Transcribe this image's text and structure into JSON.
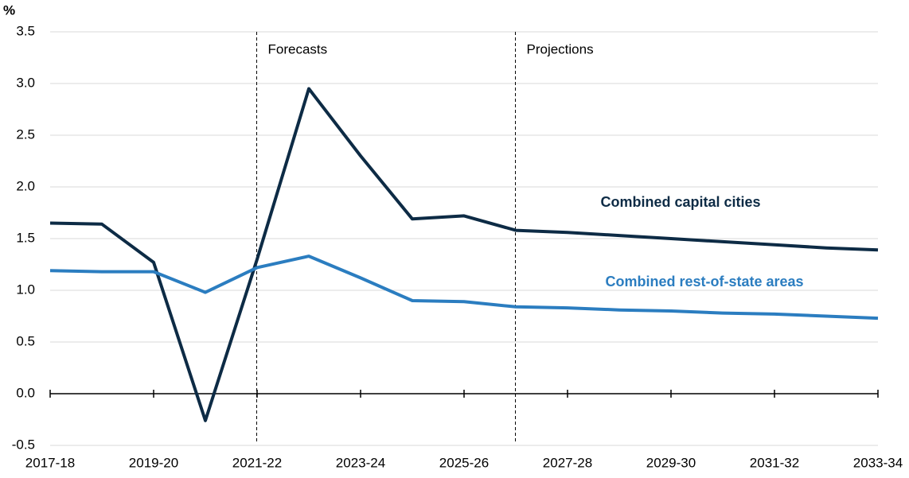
{
  "chart_data": {
    "type": "line",
    "y_label": "%",
    "categories": [
      "2017-18",
      null,
      "2019-20",
      null,
      "2021-22",
      null,
      "2023-24",
      null,
      "2025-26",
      null,
      "2027-28",
      null,
      "2029-30",
      null,
      "2031-32",
      null,
      "2033-34"
    ],
    "series": [
      {
        "name": "Combined capital cities",
        "color": "#0d2b45",
        "values": [
          1.65,
          1.64,
          1.27,
          -0.26,
          1.3,
          2.95,
          2.3,
          1.69,
          1.72,
          1.58,
          1.56,
          1.53,
          1.5,
          1.47,
          1.44,
          1.41,
          1.39
        ]
      },
      {
        "name": "Combined rest-of-state areas",
        "color": "#2b7dc0",
        "values": [
          1.19,
          1.18,
          1.18,
          0.98,
          1.22,
          1.33,
          1.12,
          0.9,
          0.89,
          0.84,
          0.83,
          0.81,
          0.8,
          0.78,
          0.77,
          0.75,
          0.73
        ]
      }
    ],
    "annotations": [
      "Forecasts",
      "Projections"
    ],
    "ylim": [
      -0.5,
      3.5
    ],
    "yticks": [
      -0.5,
      {
        "value": 0,
        "label": "0.0"
      },
      0.5,
      {
        "value": 1,
        "label": "1.0"
      },
      1.5,
      {
        "value": 2,
        "label": "2.0"
      },
      2.5,
      {
        "value": 3,
        "label": "3.0"
      },
      3.5
    ],
    "grid": true
  }
}
